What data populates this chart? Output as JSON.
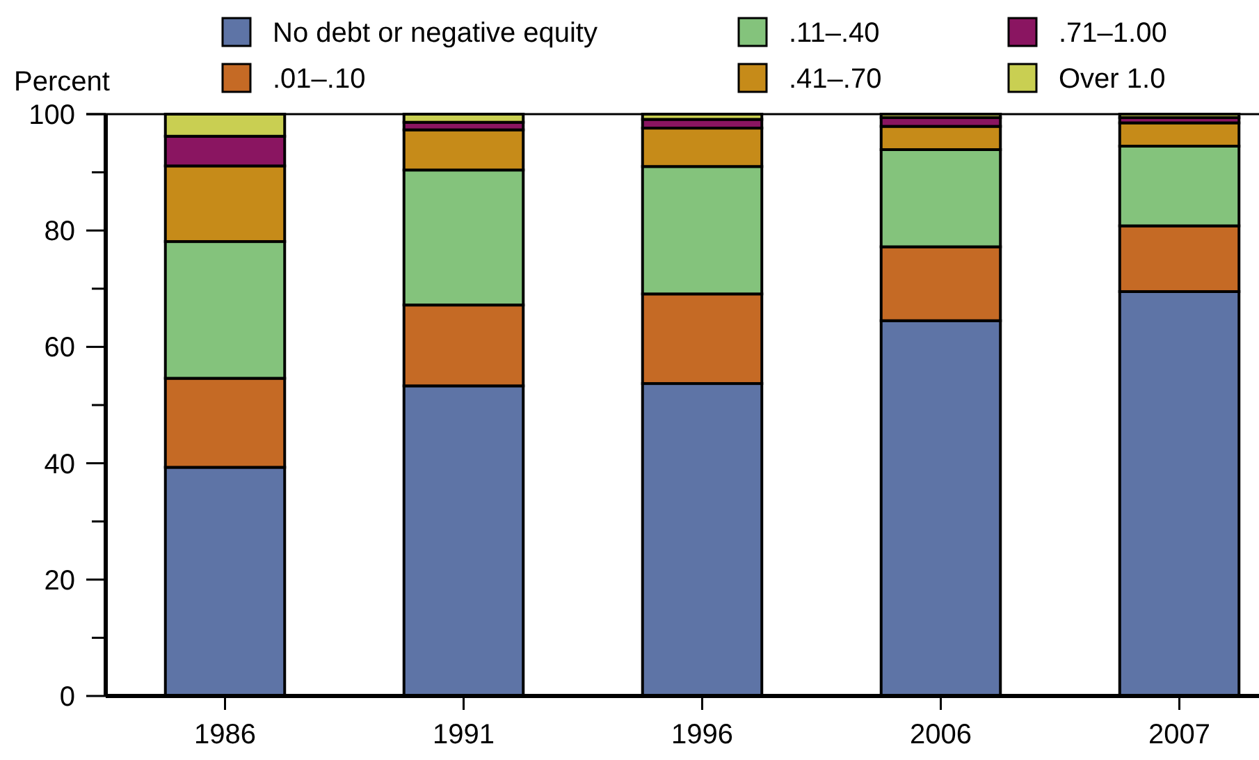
{
  "chart_data": {
    "type": "bar",
    "stacked": true,
    "ylabel": "Percent",
    "categories": [
      "1986",
      "1991",
      "1996",
      "2006",
      "2007"
    ],
    "series": [
      {
        "name": "No debt or negative equity",
        "color": "#5e74a6",
        "values": [
          39.3,
          53.3,
          53.7,
          64.5,
          69.5
        ]
      },
      {
        "name": ".01–.10",
        "color": "#c56a25",
        "values": [
          15.3,
          13.9,
          15.4,
          12.7,
          11.3
        ]
      },
      {
        "name": ".11–.40",
        "color": "#84c37c",
        "values": [
          23.5,
          23.2,
          21.9,
          16.7,
          13.7
        ]
      },
      {
        "name": ".41–.70",
        "color": "#c68b19",
        "values": [
          13.0,
          6.9,
          6.6,
          4.0,
          4.0
        ]
      },
      {
        "name": ".71–1.00",
        "color": "#8a1561",
        "values": [
          5.1,
          1.3,
          1.5,
          1.5,
          0.9
        ]
      },
      {
        "name": "Over 1.0",
        "color": "#c9cf52",
        "values": [
          3.8,
          1.4,
          0.9,
          0.6,
          0.6
        ]
      }
    ],
    "ylim": [
      0,
      100
    ],
    "yticks": [
      0,
      {
        "value": 10,
        "label": null
      },
      20,
      {
        "value": 30,
        "label": null
      },
      40,
      {
        "value": 50,
        "label": null
      },
      60,
      {
        "value": 70,
        "label": null
      },
      80,
      {
        "value": 90,
        "label": null
      },
      100
    ],
    "legend": "top",
    "grid": false
  }
}
